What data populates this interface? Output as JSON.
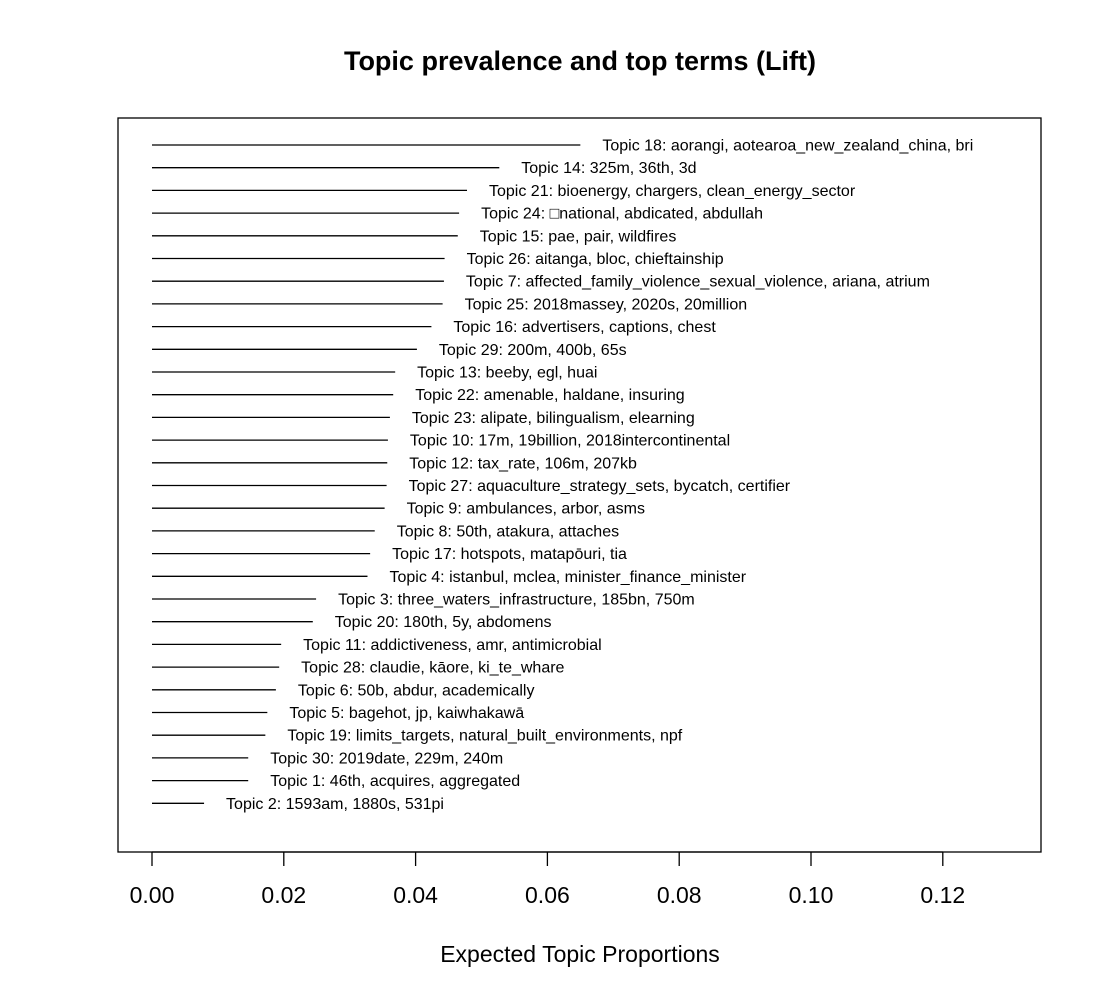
{
  "chart_data": {
    "type": "bar",
    "title": "Topic prevalence and top terms (Lift)",
    "xlabel": "Expected Topic Proportions",
    "ylabel": "",
    "xlim": [
      0,
      0.135
    ],
    "xticks": [
      0.0,
      0.02,
      0.04,
      0.06,
      0.08,
      0.1,
      0.12
    ],
    "xtick_labels": [
      "0.00",
      "0.02",
      "0.04",
      "0.06",
      "0.08",
      "0.10",
      "0.12"
    ],
    "grid": false,
    "orientation": "horizontal",
    "series": [
      {
        "label": "Topic 18: aorangi, aotearoa_new_zealand_china, bri",
        "value": 0.065
      },
      {
        "label": "Topic 14: 325m, 36th, 3d",
        "value": 0.0527
      },
      {
        "label": "Topic 21: bioenergy, chargers, clean_energy_sector",
        "value": 0.0478
      },
      {
        "label": "Topic 24: □national, abdicated, abdullah",
        "value": 0.0466
      },
      {
        "label": "Topic 15: pae, pair, wildfires",
        "value": 0.0464
      },
      {
        "label": "Topic 26: aitanga, bloc, chieftainship",
        "value": 0.0444
      },
      {
        "label": "Topic 7: affected_family_violence_sexual_violence, ariana, atrium",
        "value": 0.0443
      },
      {
        "label": "Topic 25: 2018massey, 2020s, 20million",
        "value": 0.0441
      },
      {
        "label": "Topic 16: advertisers, captions, chest",
        "value": 0.0424
      },
      {
        "label": "Topic 29: 200m, 400b, 65s",
        "value": 0.0402
      },
      {
        "label": "Topic 13: beeby, egl, huai",
        "value": 0.0369
      },
      {
        "label": "Topic 22: amenable, haldane, insuring",
        "value": 0.0366
      },
      {
        "label": "Topic 23: alipate, bilingualism, elearning",
        "value": 0.0361
      },
      {
        "label": "Topic 10: 17m, 19billion, 2018intercontinental",
        "value": 0.0358
      },
      {
        "label": "Topic 12: tax_rate, 106m, 207kb",
        "value": 0.0357
      },
      {
        "label": "Topic 27: aquaculture_strategy_sets, bycatch, certifier",
        "value": 0.0356
      },
      {
        "label": "Topic 9: ambulances, arbor, asms",
        "value": 0.0353
      },
      {
        "label": "Topic 8: 50th, atakura, attaches",
        "value": 0.0338
      },
      {
        "label": "Topic 17: hotspots, matapōuri, tia",
        "value": 0.0331
      },
      {
        "label": "Topic 4: istanbul, mclea, minister_finance_minister",
        "value": 0.0327
      },
      {
        "label": "Topic 3: three_waters_infrastructure, 185bn, 750m",
        "value": 0.0249
      },
      {
        "label": "Topic 20: 180th, 5y, abdomens",
        "value": 0.0244
      },
      {
        "label": "Topic 11: addictiveness, amr, antimicrobial",
        "value": 0.0196
      },
      {
        "label": "Topic 28: claudie, kāore, ki_te_whare",
        "value": 0.0193
      },
      {
        "label": "Topic 6: 50b, abdur, academically",
        "value": 0.0188
      },
      {
        "label": "Topic 5: bagehot, jp, kaiwhakawā",
        "value": 0.0175
      },
      {
        "label": "Topic 19: limits_targets, natural_built_environments, npf",
        "value": 0.0172
      },
      {
        "label": "Topic 30: 2019date, 229m, 240m",
        "value": 0.0146
      },
      {
        "label": "Topic 1: 46th, acquires, aggregated",
        "value": 0.0146
      },
      {
        "label": "Topic 2: 1593am, 1880s, 531pi",
        "value": 0.0079
      }
    ]
  }
}
